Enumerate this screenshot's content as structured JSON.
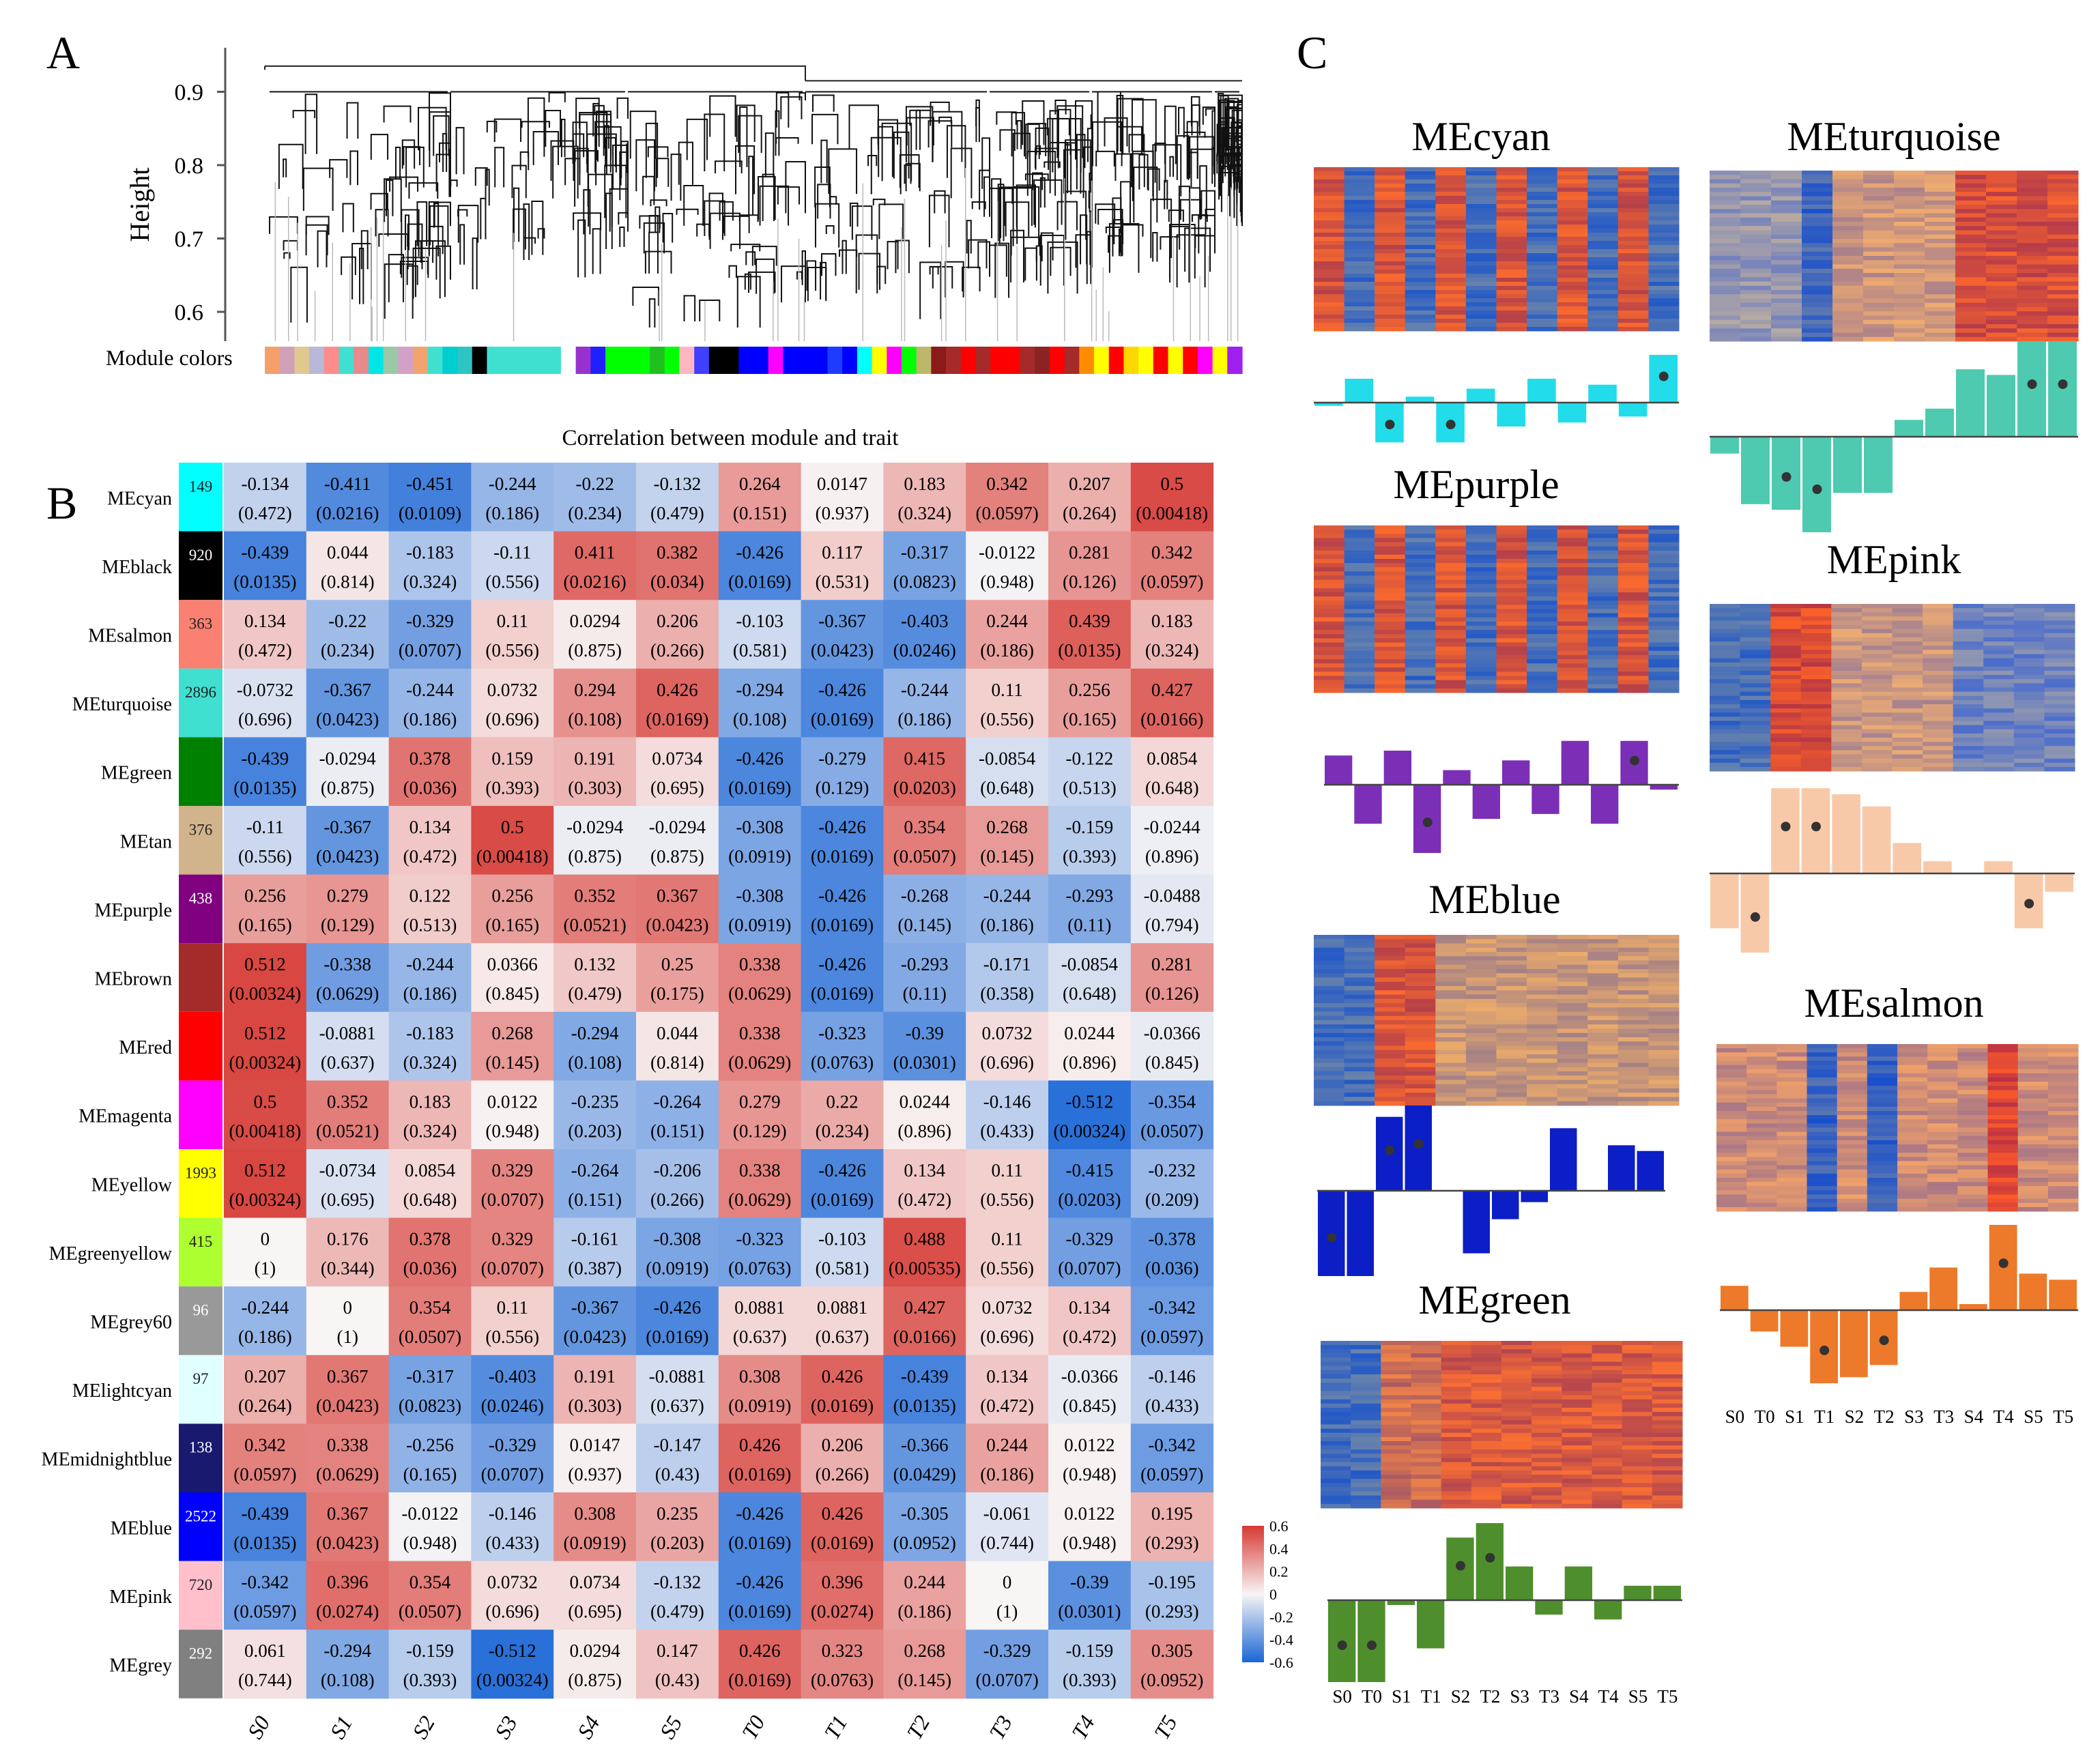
{
  "panels": {
    "a": "A",
    "b": "B",
    "c": "C"
  },
  "dendrogram": {
    "ylabel": "Height",
    "yticks": [
      0.6,
      0.7,
      0.8,
      0.9
    ],
    "ymin": 0.56,
    "ymax": 0.96,
    "colors_label": "Module colors",
    "color_strip": [
      "#f5a06a",
      "#cfa0b8",
      "#e0c890",
      "#b8b8d8",
      "#ff8c8c",
      "#40e0d0",
      "#e88a8a",
      "#00e5e5",
      "#9bc9a5",
      "#d3a1c8",
      "#f2a46f",
      "#40e0d0",
      "#00ced1",
      "#2ec4c4",
      "#000000",
      "#40e0d0",
      "#40e0d0",
      "#40e0d0",
      "#40e0d0",
      "#40e0d0",
      "#ffffff",
      "#9932cc",
      "#2020ff",
      "#00ff00",
      "#00ff00",
      "#00ff00",
      "#20c020",
      "#00ff00",
      "#ffb6c1",
      "#4040ff",
      "#000000",
      "#000000",
      "#0000ff",
      "#0000ff",
      "#ff00ff",
      "#0000ff",
      "#0000ff",
      "#0000ff",
      "#1e3cff",
      "#0000ff",
      "#00ffff",
      "#ffff00",
      "#ff00ff",
      "#00ff00",
      "#bdb76b",
      "#8b1a1a",
      "#a52a2a",
      "#ff0000",
      "#a52a2a",
      "#ff0000",
      "#ff0000",
      "#a52a2a",
      "#8b2323",
      "#ff0000",
      "#a52a2a",
      "#ff8c00",
      "#ffff00",
      "#ff0000",
      "#ffd700",
      "#ffff00",
      "#ff0000",
      "#ffff00",
      "#ff0000",
      "#ff00ff",
      "#ffff00",
      "#a020f0"
    ]
  },
  "chart_data": [
    {
      "type": "heatmap",
      "title": "Correlation between module and trait",
      "columns": [
        "S0",
        "S1",
        "S2",
        "S3",
        "S4",
        "S5",
        "T0",
        "T1",
        "T2",
        "T3",
        "T4",
        "T5"
      ],
      "legend_ticks": [
        0.6,
        0.4,
        0.2,
        0,
        -0.2,
        -0.4,
        -0.6
      ],
      "value_range": [
        -0.6,
        0.6
      ],
      "rows": [
        {
          "name": "MEcyan",
          "size": "149",
          "color": "#00ffff",
          "values": [
            "-0.134",
            "-0.411",
            "-0.451",
            "-0.244",
            "-0.22",
            "-0.132",
            "0.264",
            "0.0147",
            "0.183",
            "0.342",
            "0.207",
            "0.5"
          ],
          "pvalues": [
            "(0.472)",
            "(0.0216)",
            "(0.0109)",
            "(0.186)",
            "(0.234)",
            "(0.479)",
            "(0.151)",
            "(0.937)",
            "(0.324)",
            "(0.0597)",
            "(0.264)",
            "(0.00418)"
          ]
        },
        {
          "name": "MEblack",
          "size": "920",
          "color": "#000000",
          "values": [
            "-0.439",
            "0.044",
            "-0.183",
            "-0.11",
            "0.411",
            "0.382",
            "-0.426",
            "0.117",
            "-0.317",
            "-0.0122",
            "0.281",
            "0.342"
          ],
          "pvalues": [
            "(0.0135)",
            "(0.814)",
            "(0.324)",
            "(0.556)",
            "(0.0216)",
            "(0.034)",
            "(0.0169)",
            "(0.531)",
            "(0.0823)",
            "(0.948)",
            "(0.126)",
            "(0.0597)"
          ]
        },
        {
          "name": "MEsalmon",
          "size": "363",
          "color": "#fa8072",
          "values": [
            "0.134",
            "-0.22",
            "-0.329",
            "0.11",
            "0.0294",
            "0.206",
            "-0.103",
            "-0.367",
            "-0.403",
            "0.244",
            "0.439",
            "0.183"
          ],
          "pvalues": [
            "(0.472)",
            "(0.234)",
            "(0.0707)",
            "(0.556)",
            "(0.875)",
            "(0.266)",
            "(0.581)",
            "(0.0423)",
            "(0.0246)",
            "(0.186)",
            "(0.0135)",
            "(0.324)"
          ]
        },
        {
          "name": "MEturquoise",
          "size": "2896",
          "color": "#40e0d0",
          "values": [
            "-0.0732",
            "-0.367",
            "-0.244",
            "0.0732",
            "0.294",
            "0.426",
            "-0.294",
            "-0.426",
            "-0.244",
            "0.11",
            "0.256",
            "0.427"
          ],
          "pvalues": [
            "(0.696)",
            "(0.0423)",
            "(0.186)",
            "(0.696)",
            "(0.108)",
            "(0.0169)",
            "(0.108)",
            "(0.0169)",
            "(0.186)",
            "(0.556)",
            "(0.165)",
            "(0.0166)"
          ]
        },
        {
          "name": "MEgreen",
          "size": "",
          "color": "#008000",
          "values": [
            "-0.439",
            "-0.0294",
            "0.378",
            "0.159",
            "0.191",
            "0.0734",
            "-0.426",
            "-0.279",
            "0.415",
            "-0.0854",
            "-0.122",
            "0.0854"
          ],
          "pvalues": [
            "(0.0135)",
            "(0.875)",
            "(0.036)",
            "(0.393)",
            "(0.303)",
            "(0.695)",
            "(0.0169)",
            "(0.129)",
            "(0.0203)",
            "(0.648)",
            "(0.513)",
            "(0.648)"
          ]
        },
        {
          "name": "MEtan",
          "size": "376",
          "color": "#d2b48c",
          "values": [
            "-0.11",
            "-0.367",
            "0.134",
            "0.5",
            "-0.0294",
            "-0.0294",
            "-0.308",
            "-0.426",
            "0.354",
            "0.268",
            "-0.159",
            "-0.0244"
          ],
          "pvalues": [
            "(0.556)",
            "(0.0423)",
            "(0.472)",
            "(0.00418)",
            "(0.875)",
            "(0.875)",
            "(0.0919)",
            "(0.0169)",
            "(0.0507)",
            "(0.145)",
            "(0.393)",
            "(0.896)"
          ]
        },
        {
          "name": "MEpurple",
          "size": "438",
          "color": "#800080",
          "values": [
            "0.256",
            "0.279",
            "0.122",
            "0.256",
            "0.352",
            "0.367",
            "-0.308",
            "-0.426",
            "-0.268",
            "-0.244",
            "-0.293",
            "-0.0488"
          ],
          "pvalues": [
            "(0.165)",
            "(0.129)",
            "(0.513)",
            "(0.165)",
            "(0.0521)",
            "(0.0423)",
            "(0.0919)",
            "(0.0169)",
            "(0.145)",
            "(0.186)",
            "(0.11)",
            "(0.794)"
          ]
        },
        {
          "name": "MEbrown",
          "size": "",
          "color": "#a52a2a",
          "values": [
            "0.512",
            "-0.338",
            "-0.244",
            "0.0366",
            "0.132",
            "0.25",
            "0.338",
            "-0.426",
            "-0.293",
            "-0.171",
            "-0.0854",
            "0.281"
          ],
          "pvalues": [
            "(0.00324)",
            "(0.0629)",
            "(0.186)",
            "(0.845)",
            "(0.479)",
            "(0.175)",
            "(0.0629)",
            "(0.0169)",
            "(0.11)",
            "(0.358)",
            "(0.648)",
            "(0.126)"
          ]
        },
        {
          "name": "MEred",
          "size": "",
          "color": "#ff0000",
          "values": [
            "0.512",
            "-0.0881",
            "-0.183",
            "0.268",
            "-0.294",
            "0.044",
            "0.338",
            "-0.323",
            "-0.39",
            "0.0732",
            "0.0244",
            "-0.0366"
          ],
          "pvalues": [
            "(0.00324)",
            "(0.637)",
            "(0.324)",
            "(0.145)",
            "(0.108)",
            "(0.814)",
            "(0.0629)",
            "(0.0763)",
            "(0.0301)",
            "(0.696)",
            "(0.896)",
            "(0.845)"
          ]
        },
        {
          "name": "MEmagenta",
          "size": "",
          "color": "#ff00ff",
          "values": [
            "0.5",
            "0.352",
            "0.183",
            "0.0122",
            "-0.235",
            "-0.264",
            "0.279",
            "0.22",
            "0.0244",
            "-0.146",
            "-0.512",
            "-0.354"
          ],
          "pvalues": [
            "(0.00418)",
            "(0.0521)",
            "(0.324)",
            "(0.948)",
            "(0.203)",
            "(0.151)",
            "(0.129)",
            "(0.234)",
            "(0.896)",
            "(0.433)",
            "(0.00324)",
            "(0.0507)"
          ]
        },
        {
          "name": "MEyellow",
          "size": "1993",
          "color": "#ffff00",
          "values": [
            "0.512",
            "-0.0734",
            "0.0854",
            "0.329",
            "-0.264",
            "-0.206",
            "0.338",
            "-0.426",
            "0.134",
            "0.11",
            "-0.415",
            "-0.232"
          ],
          "pvalues": [
            "(0.00324)",
            "(0.695)",
            "(0.648)",
            "(0.0707)",
            "(0.151)",
            "(0.266)",
            "(0.0629)",
            "(0.0169)",
            "(0.472)",
            "(0.556)",
            "(0.0203)",
            "(0.209)"
          ]
        },
        {
          "name": "MEgreenyellow",
          "size": "415",
          "color": "#adff2f",
          "values": [
            "0",
            "0.176",
            "0.378",
            "0.329",
            "-0.161",
            "-0.308",
            "-0.323",
            "-0.103",
            "0.488",
            "0.11",
            "-0.329",
            "-0.378"
          ],
          "pvalues": [
            "(1)",
            "(0.344)",
            "(0.036)",
            "(0.0707)",
            "(0.387)",
            "(0.0919)",
            "(0.0763)",
            "(0.581)",
            "(0.00535)",
            "(0.556)",
            "(0.0707)",
            "(0.036)"
          ]
        },
        {
          "name": "MEgrey60",
          "size": "96",
          "color": "#999999",
          "values": [
            "-0.244",
            "0",
            "0.354",
            "0.11",
            "-0.367",
            "-0.426",
            "0.0881",
            "0.0881",
            "0.427",
            "0.0732",
            "0.134",
            "-0.342"
          ],
          "pvalues": [
            "(0.186)",
            "(1)",
            "(0.0507)",
            "(0.556)",
            "(0.0423)",
            "(0.0169)",
            "(0.637)",
            "(0.637)",
            "(0.0166)",
            "(0.696)",
            "(0.472)",
            "(0.0597)"
          ]
        },
        {
          "name": "MElightcyan",
          "size": "97",
          "color": "#e0ffff",
          "values": [
            "0.207",
            "0.367",
            "-0.317",
            "-0.403",
            "0.191",
            "-0.0881",
            "0.308",
            "0.426",
            "-0.439",
            "0.134",
            "-0.0366",
            "-0.146"
          ],
          "pvalues": [
            "(0.264)",
            "(0.0423)",
            "(0.0823)",
            "(0.0246)",
            "(0.303)",
            "(0.637)",
            "(0.0919)",
            "(0.0169)",
            "(0.0135)",
            "(0.472)",
            "(0.845)",
            "(0.433)"
          ]
        },
        {
          "name": "MEmidnightblue",
          "size": "138",
          "color": "#191970",
          "values": [
            "0.342",
            "0.338",
            "-0.256",
            "-0.329",
            "0.0147",
            "-0.147",
            "0.426",
            "0.206",
            "-0.366",
            "0.244",
            "0.0122",
            "-0.342"
          ],
          "pvalues": [
            "(0.0597)",
            "(0.0629)",
            "(0.165)",
            "(0.0707)",
            "(0.937)",
            "(0.43)",
            "(0.0169)",
            "(0.266)",
            "(0.0429)",
            "(0.186)",
            "(0.948)",
            "(0.0597)"
          ]
        },
        {
          "name": "MEblue",
          "size": "2522",
          "color": "#0000ff",
          "values": [
            "-0.439",
            "0.367",
            "-0.0122",
            "-0.146",
            "0.308",
            "0.235",
            "-0.426",
            "0.426",
            "-0.305",
            "-0.061",
            "0.0122",
            "0.195"
          ],
          "pvalues": [
            "(0.0135)",
            "(0.0423)",
            "(0.948)",
            "(0.433)",
            "(0.0919)",
            "(0.203)",
            "(0.0169)",
            "(0.0169)",
            "(0.0952)",
            "(0.744)",
            "(0.948)",
            "(0.293)"
          ]
        },
        {
          "name": "MEpink",
          "size": "720",
          "color": "#ffc0cb",
          "values": [
            "-0.342",
            "0.396",
            "0.354",
            "0.0732",
            "0.0734",
            "-0.132",
            "-0.426",
            "0.396",
            "0.244",
            "0",
            "-0.39",
            "-0.195"
          ],
          "pvalues": [
            "(0.0597)",
            "(0.0274)",
            "(0.0507)",
            "(0.696)",
            "(0.695)",
            "(0.479)",
            "(0.0169)",
            "(0.0274)",
            "(0.186)",
            "(1)",
            "(0.0301)",
            "(0.293)"
          ]
        },
        {
          "name": "MEgrey",
          "size": "292",
          "color": "#808080",
          "values": [
            "0.061",
            "-0.294",
            "-0.159",
            "-0.512",
            "0.0294",
            "0.147",
            "0.426",
            "0.323",
            "0.268",
            "-0.329",
            "-0.159",
            "0.305"
          ],
          "pvalues": [
            "(0.744)",
            "(0.108)",
            "(0.393)",
            "(0.00324)",
            "(0.875)",
            "(0.43)",
            "(0.0169)",
            "(0.0763)",
            "(0.145)",
            "(0.0707)",
            "(0.393)",
            "(0.0952)"
          ]
        }
      ]
    },
    {
      "type": "bar",
      "title": "MEcyan",
      "color": "#22dcea",
      "heat_pattern": "alternating",
      "categories": [
        "S0",
        "T0",
        "S1",
        "T1",
        "S2",
        "T2",
        "S3",
        "T3",
        "S4",
        "T4",
        "S5",
        "T5"
      ],
      "values": [
        -0.08,
        0.6,
        -1.0,
        0.15,
        -1.0,
        0.35,
        -0.6,
        0.6,
        -0.5,
        0.45,
        -0.35,
        1.2
      ],
      "significant": [
        false,
        false,
        true,
        false,
        true,
        false,
        false,
        false,
        false,
        false,
        false,
        true
      ]
    },
    {
      "type": "bar",
      "title": "MEpurple",
      "color": "#7b2fb6",
      "heat_pattern": "alternating",
      "categories": [
        "S0",
        "T0",
        "S1",
        "T1",
        "S2",
        "T2",
        "S3",
        "T3",
        "S4",
        "T4",
        "S5",
        "T5"
      ],
      "values": [
        0.6,
        -0.8,
        0.7,
        -1.4,
        0.3,
        -0.7,
        0.5,
        -0.6,
        0.9,
        -0.8,
        0.9,
        -0.1
      ],
      "significant": [
        false,
        false,
        false,
        true,
        false,
        false,
        false,
        false,
        false,
        false,
        true,
        false
      ]
    },
    {
      "type": "bar",
      "title": "MEblue",
      "color": "#0c1ec6",
      "heat_pattern": "blue",
      "categories": [
        "S0",
        "T0",
        "S1",
        "T1",
        "S2",
        "T2",
        "S3",
        "T3",
        "S4",
        "T4",
        "S5",
        "T5"
      ],
      "values": [
        -1.5,
        -1.5,
        1.3,
        1.5,
        0.0,
        -1.1,
        -0.5,
        -0.2,
        1.1,
        0.0,
        0.8,
        0.7
      ],
      "significant": [
        true,
        false,
        true,
        true,
        false,
        false,
        false,
        false,
        false,
        false,
        false,
        false
      ]
    },
    {
      "type": "bar",
      "title": "MEgreen",
      "color": "#4f8e2c",
      "heat_pattern": "green",
      "categories": [
        "S0",
        "T0",
        "S1",
        "T1",
        "S2",
        "T2",
        "S3",
        "T3",
        "S4",
        "T4",
        "S5",
        "T5"
      ],
      "values": [
        -1.7,
        -1.7,
        -0.1,
        -1.0,
        1.3,
        1.6,
        0.7,
        -0.3,
        0.7,
        -0.4,
        0.3,
        0.3
      ],
      "significant": [
        true,
        true,
        false,
        false,
        true,
        true,
        false,
        false,
        false,
        false,
        false,
        false
      ],
      "show_axis_labels": true
    },
    {
      "type": "bar",
      "title": "MEturquoise",
      "color": "#4dcab0",
      "heat_pattern": "turquoise",
      "categories": [
        "S0",
        "T0",
        "S1",
        "T1",
        "S2",
        "T2",
        "S3",
        "T3",
        "S4",
        "T4",
        "S5",
        "T5"
      ],
      "values": [
        -0.3,
        -1.2,
        -1.3,
        -1.7,
        -1.0,
        -1.0,
        0.3,
        0.5,
        1.2,
        1.1,
        1.7,
        1.7
      ],
      "significant": [
        false,
        false,
        true,
        true,
        false,
        false,
        false,
        false,
        false,
        false,
        true,
        true
      ]
    },
    {
      "type": "bar",
      "title": "MEpink",
      "color": "#f8c9a9",
      "heat_pattern": "pink",
      "categories": [
        "S0",
        "T0",
        "S1",
        "T1",
        "S2",
        "T2",
        "S3",
        "T3",
        "S4",
        "T4",
        "S5",
        "T5"
      ],
      "values": [
        -0.9,
        -1.3,
        1.4,
        1.4,
        1.3,
        1.1,
        0.5,
        0.2,
        0.0,
        0.2,
        -0.9,
        -0.3
      ],
      "significant": [
        false,
        true,
        true,
        true,
        false,
        false,
        false,
        false,
        false,
        false,
        true,
        false
      ]
    },
    {
      "type": "bar",
      "title": "MEsalmon",
      "color": "#ec7a2a",
      "heat_pattern": "salmon",
      "categories": [
        "S0",
        "T0",
        "S1",
        "T1",
        "S2",
        "T2",
        "S3",
        "T3",
        "S4",
        "T4",
        "S5",
        "T5"
      ],
      "values": [
        0.4,
        -0.35,
        -0.6,
        -1.2,
        -1.1,
        -0.9,
        0.3,
        0.7,
        0.1,
        1.4,
        0.6,
        0.5
      ],
      "significant": [
        false,
        false,
        false,
        true,
        false,
        true,
        false,
        false,
        false,
        true,
        false,
        false
      ],
      "show_axis_labels": true
    }
  ]
}
